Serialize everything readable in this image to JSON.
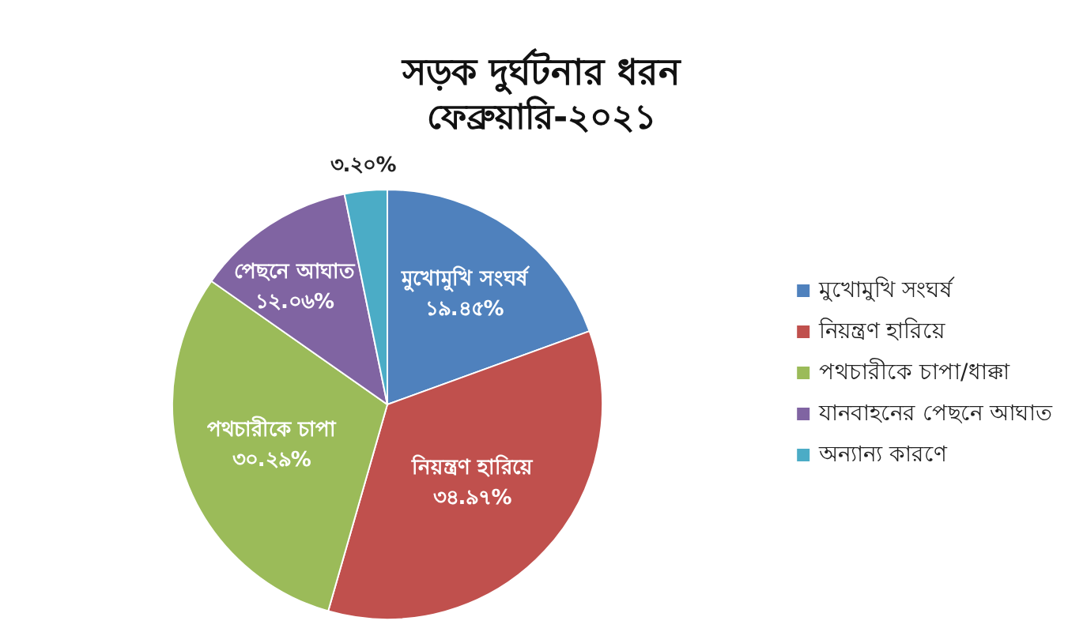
{
  "chart_data": {
    "type": "pie",
    "title": "সড়ক দুর্ঘটনার ধরন",
    "subtitle": "ফেব্রুয়ারি-২০২১",
    "categories": [
      "মুখোমুখি সংঘর্ষ",
      "নিয়ন্ত্রণ হারিয়ে",
      "পথচারীকে চাপা/ধাক্কা",
      "যানবাহনের পেছনে আঘাত",
      "অন্যান্য কারণে"
    ],
    "values": [
      19.45,
      34.97,
      30.29,
      12.06,
      3.2
    ],
    "colors": [
      "#4f81bd",
      "#c0504d",
      "#9bbb59",
      "#8064a2",
      "#4bacc6"
    ],
    "value_labels": [
      "মুখোমুখি সংঘর্ষ\n১৯.৪৫%",
      "নিয়ন্ত্রণ হারিয়ে\n৩৪.৯৭%",
      "পথচারীকে চাপা\n৩০.২৯%",
      "পেছনে আঘাত\n১২.০৬%",
      "৩.২০%"
    ],
    "legend": "right"
  }
}
